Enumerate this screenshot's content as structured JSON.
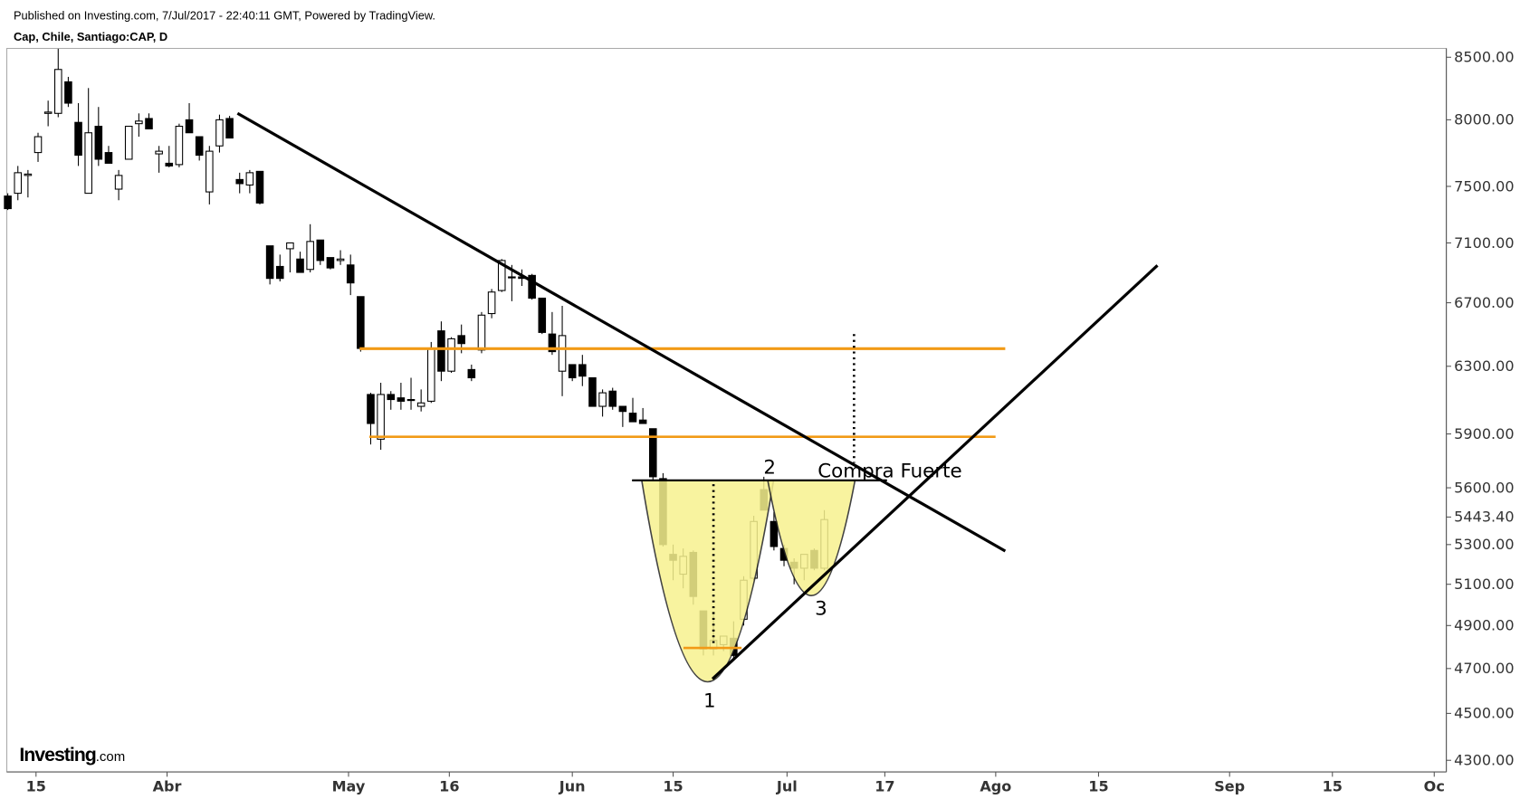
{
  "header": {
    "published": "Published on Investing.com, 7/Jul/2017 - 22:40:11 GMT, Powered by TradingView.",
    "symbol": "Cap, Chile, Santiago:CAP, D"
  },
  "logo": {
    "brand": "Investing",
    "suffix": ".com"
  },
  "chart_data": {
    "type": "candlestick",
    "log_scale": true,
    "up_color": "#ffffff",
    "down_color": "#000000",
    "x": [
      0,
      1,
      2,
      3,
      4,
      5,
      6,
      7,
      8,
      9,
      10,
      11,
      12,
      13,
      14,
      15,
      16,
      17,
      18,
      19,
      20,
      21,
      22,
      23,
      24,
      25,
      26,
      27,
      28,
      29,
      30,
      31,
      32,
      33,
      34,
      35,
      36,
      37,
      38,
      39,
      40,
      41,
      42,
      43,
      44,
      45,
      46,
      47,
      48,
      49,
      50,
      51,
      52,
      53,
      54,
      55,
      56,
      57,
      58,
      59,
      60,
      61,
      62,
      63,
      64,
      65,
      66,
      67,
      68,
      69,
      70,
      71,
      72,
      73,
      74,
      75,
      76,
      77,
      78,
      79,
      80,
      81
    ],
    "open": [
      7430,
      7450,
      7580,
      7750,
      8050,
      8050,
      8300,
      7980,
      7450,
      7950,
      7750,
      7480,
      7700,
      7970,
      8010,
      7740,
      7670,
      7660,
      8000,
      7870,
      7460,
      7800,
      8010,
      7550,
      7510,
      7610,
      7080,
      6940,
      7060,
      6990,
      6920,
      7120,
      7000,
      6980,
      6950,
      6740,
      6130,
      5870,
      6130,
      6110,
      6100,
      6060,
      6090,
      6520,
      6270,
      6490,
      6280,
      6400,
      6630,
      6780,
      6870,
      6870,
      6880,
      6730,
      6500,
      6270,
      6310,
      6310,
      6230,
      6060,
      6150,
      6060,
      6020,
      5980,
      5930,
      5650,
      5250,
      5150,
      5260,
      4970,
      4790,
      4810,
      4840,
      4930,
      5130,
      5590,
      5420,
      5280,
      5210,
      5180,
      5270,
      5180
    ],
    "high": [
      7450,
      7650,
      7620,
      7900,
      8150,
      8570,
      8340,
      8130,
      8250,
      8100,
      7800,
      7620,
      7950,
      8050,
      8050,
      7800,
      7800,
      7970,
      8130,
      7870,
      7800,
      8040,
      8030,
      7600,
      7620,
      7610,
      7080,
      7020,
      7100,
      7040,
      7230,
      7120,
      7000,
      7050,
      7020,
      6740,
      6140,
      6200,
      6150,
      6200,
      6230,
      6160,
      6450,
      6580,
      6480,
      6560,
      6310,
      6640,
      6790,
      6990,
      6950,
      6920,
      6890,
      6730,
      6640,
      6680,
      6310,
      6370,
      6230,
      6160,
      6170,
      6060,
      6110,
      6050,
      5930,
      5680,
      5300,
      5280,
      5270,
      4970,
      4960,
      4850,
      4920,
      5140,
      5450,
      5660,
      5470,
      5300,
      5230,
      5250,
      5280,
      5480
    ],
    "low": [
      7330,
      7400,
      7420,
      7680,
      7950,
      8020,
      8100,
      7650,
      7450,
      7650,
      7680,
      7400,
      7700,
      7870,
      7940,
      7600,
      7640,
      7640,
      7900,
      7690,
      7370,
      7750,
      7860,
      7450,
      7450,
      7370,
      6820,
      6840,
      6900,
      6900,
      6900,
      6950,
      6920,
      6950,
      6750,
      6390,
      5840,
      5810,
      6040,
      6040,
      6040,
      6030,
      6080,
      6210,
      6260,
      6380,
      6210,
      6380,
      6600,
      6770,
      6710,
      6810,
      6720,
      6500,
      6370,
      6120,
      6210,
      6180,
      6060,
      6000,
      6040,
      5940,
      5980,
      5960,
      5640,
      5290,
      5120,
      5080,
      5000,
      4760,
      4760,
      4780,
      4740,
      4900,
      5120,
      5480,
      5270,
      5190,
      5100,
      5120,
      5170,
      5170
    ],
    "close": [
      7340,
      7600,
      7590,
      7870,
      8060,
      8400,
      8130,
      7730,
      7900,
      7700,
      7670,
      7580,
      7950,
      7990,
      7930,
      7760,
      7650,
      7950,
      7900,
      7730,
      7760,
      8000,
      7860,
      7520,
      7600,
      7380,
      6860,
      6860,
      7100,
      6900,
      7110,
      6980,
      6930,
      6990,
      6830,
      6410,
      5960,
      6130,
      6100,
      6090,
      6100,
      6080,
      6410,
      6270,
      6470,
      6440,
      6230,
      6620,
      6770,
      6980,
      6870,
      6860,
      6730,
      6510,
      6390,
      6490,
      6230,
      6240,
      6060,
      6140,
      6060,
      6030,
      5970,
      5960,
      5660,
      5300,
      5220,
      5240,
      5040,
      4790,
      4830,
      4850,
      4760,
      5120,
      5420,
      5480,
      5290,
      5220,
      5180,
      5250,
      5180,
      5430
    ],
    "xlim": [
      -0.1,
      142.7
    ],
    "xticks": [
      {
        "value": 2.8,
        "label": "15"
      },
      {
        "value": 15.8,
        "label": "Abr"
      },
      {
        "value": 33.8,
        "label": "May"
      },
      {
        "value": 43.8,
        "label": "16"
      },
      {
        "value": 56,
        "label": "Jun"
      },
      {
        "value": 66,
        "label": "15"
      },
      {
        "value": 77.3,
        "label": "Jul"
      },
      {
        "value": 87,
        "label": "17"
      },
      {
        "value": 98,
        "label": "Ago"
      },
      {
        "value": 108.2,
        "label": "15"
      },
      {
        "value": 121.2,
        "label": "Sep"
      },
      {
        "value": 131.4,
        "label": "15"
      },
      {
        "value": 141.5,
        "label": "Oc"
      }
    ],
    "ylim": [
      4252,
      8573
    ],
    "yticks": [
      {
        "value": 4300,
        "label": "4300.00"
      },
      {
        "value": 4500,
        "label": "4500.00"
      },
      {
        "value": 4700,
        "label": "4700.00"
      },
      {
        "value": 4900,
        "label": "4900.00"
      },
      {
        "value": 5100,
        "label": "5100.00"
      },
      {
        "value": 5300,
        "label": "5300.00"
      },
      {
        "value": 5600,
        "label": "5600.00"
      },
      {
        "value": 5900,
        "label": "5900.00"
      },
      {
        "value": 6300,
        "label": "6300.00"
      },
      {
        "value": 6700,
        "label": "6700.00"
      },
      {
        "value": 7100,
        "label": "7100.00"
      },
      {
        "value": 7500,
        "label": "7500.00"
      },
      {
        "value": 8000,
        "label": "8000.00"
      },
      {
        "value": 8500,
        "label": "8500.00"
      }
    ],
    "last_price": {
      "value": 5443.4,
      "label": "5443.40"
    },
    "annotations": {
      "bottom_1": "1",
      "top_2": "2",
      "bottom_3": "3",
      "signal": "Compra Fuerte"
    }
  }
}
